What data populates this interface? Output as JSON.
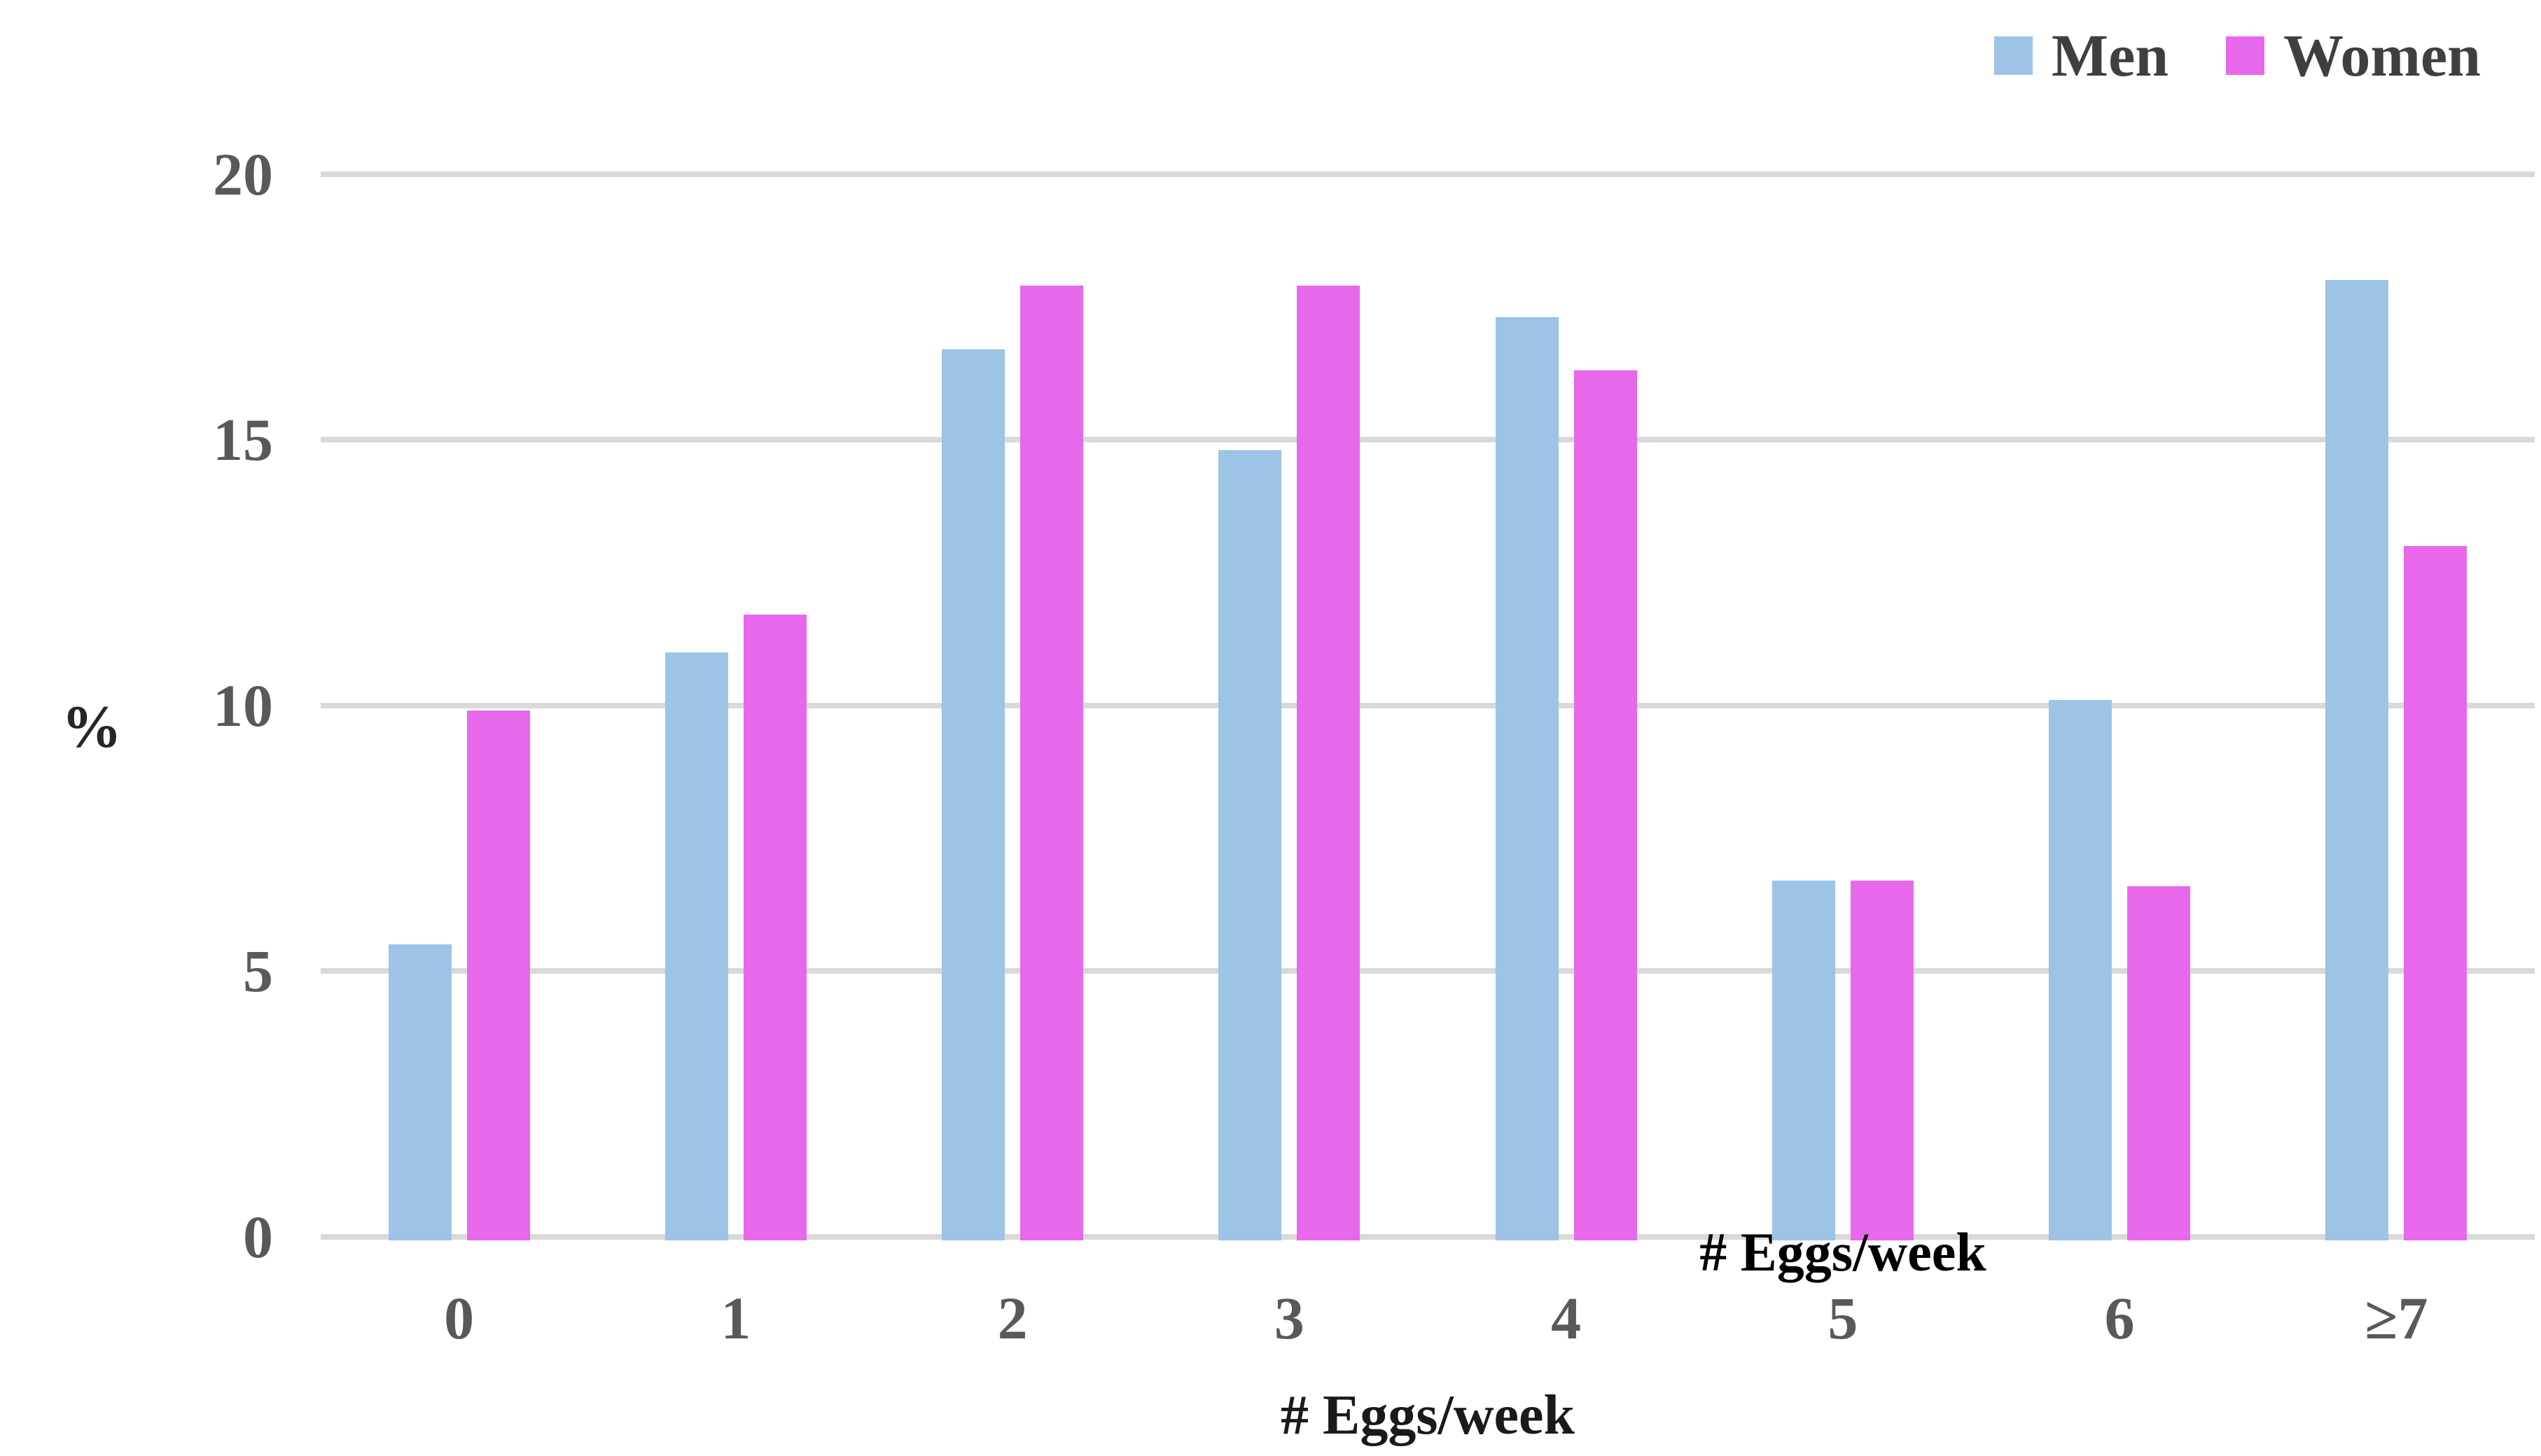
{
  "chart_data": {
    "type": "bar",
    "title": "",
    "categories": [
      "0",
      "1",
      "2",
      "3",
      "4",
      "5",
      "6",
      "≥7"
    ],
    "series": [
      {
        "name": "Men",
        "color": "#9DC3E6",
        "values": [
          5.5,
          11.0,
          16.7,
          14.8,
          17.3,
          6.7,
          10.1,
          18.0
        ]
      },
      {
        "name": "Women",
        "color": "#E868EC",
        "values": [
          9.9,
          11.7,
          17.9,
          17.9,
          16.3,
          6.7,
          6.6,
          13.0
        ]
      }
    ],
    "xlabel": "# Eggs/week",
    "ylabel": "%",
    "ylim": [
      0,
      20
    ],
    "yticks": [
      0,
      5,
      10,
      15,
      20
    ],
    "grid": true,
    "legend_position": "top-right",
    "annotations": [
      {
        "text": "# Eggs/week",
        "x_category": "5",
        "y": 0
      }
    ],
    "colors": {
      "gridline": "#D9D9D9",
      "tick_label": "#595959",
      "axis_title": "#1A1A1A",
      "legend_label": "#3F3F3F",
      "background": "#FFFFFF"
    }
  }
}
